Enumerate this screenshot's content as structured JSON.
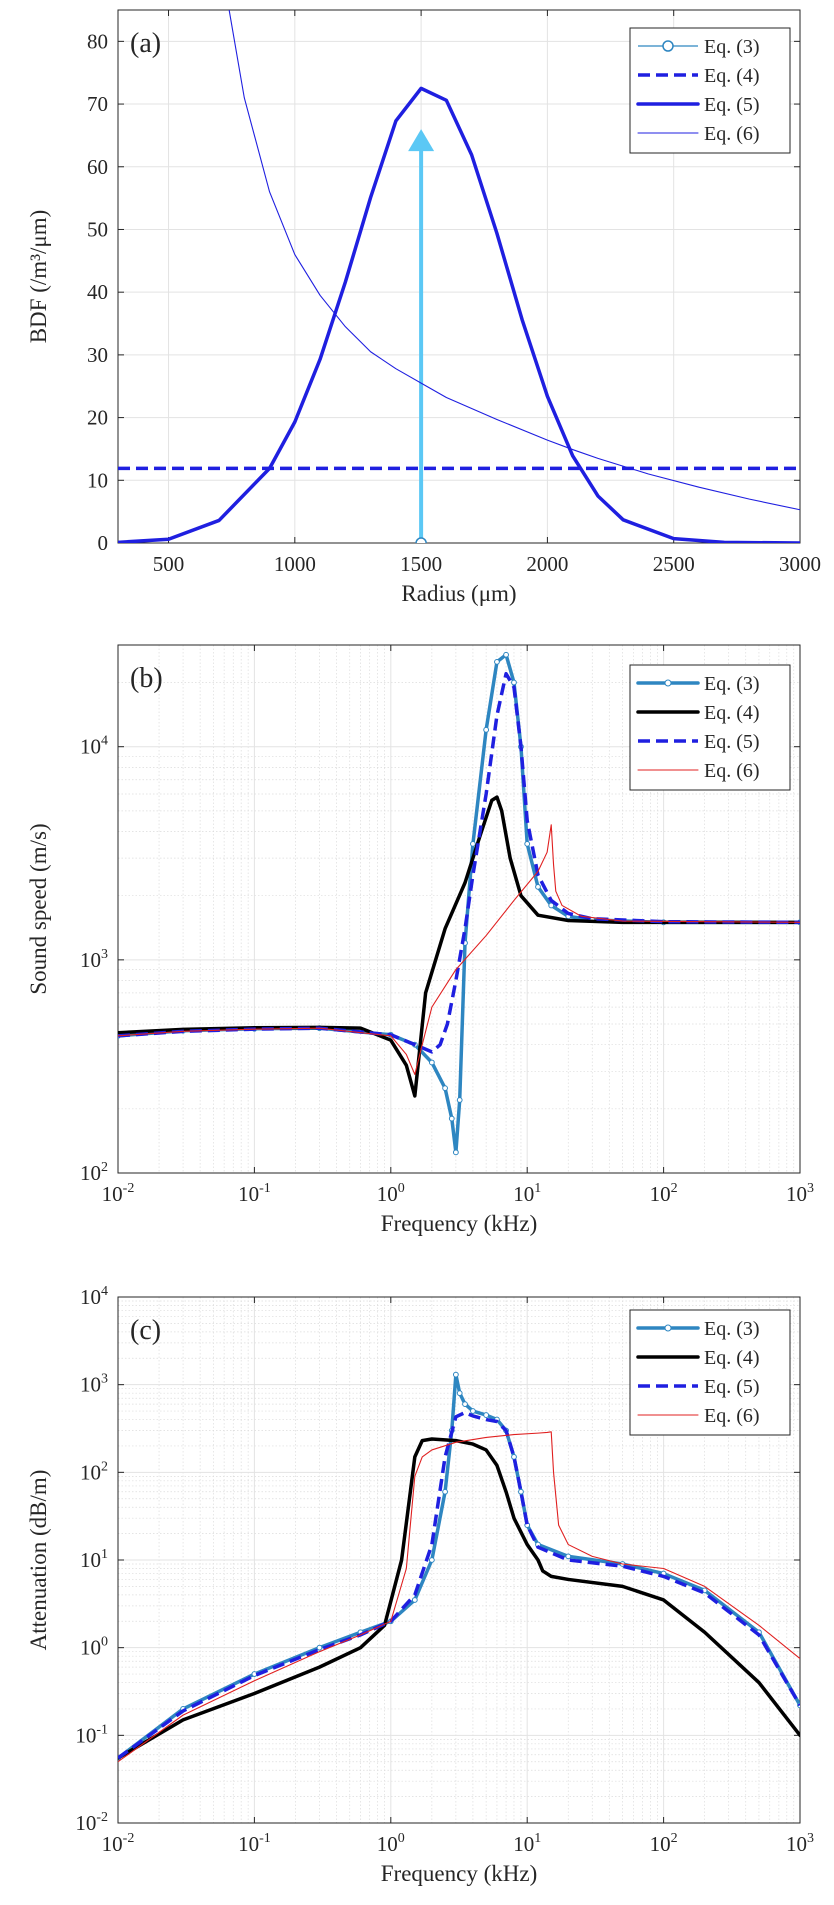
{
  "chart_data": [
    {
      "panel_label": "(a)",
      "type": "line",
      "xlabel": "Radius (μm)",
      "ylabel": "BDF (/m³/μm)",
      "xlim": [
        300,
        3000
      ],
      "ylim": [
        0,
        85
      ],
      "xscale": "linear",
      "yscale": "linear",
      "grid": true,
      "legend_position": "top-right",
      "x_ticks": [
        500,
        1000,
        1500,
        2000,
        2500,
        3000
      ],
      "x_tick_labels": [
        "500",
        "1000",
        "1500",
        "2000",
        "2500",
        "3000"
      ],
      "y_ticks": [
        0,
        10,
        20,
        30,
        40,
        50,
        60,
        70,
        80
      ],
      "y_tick_labels": [
        "0",
        "10",
        "20",
        "30",
        "40",
        "50",
        "60",
        "70",
        "80"
      ],
      "series": [
        {
          "name": "Eq. (3)",
          "color": "#5bc8f5",
          "style": "arrow",
          "x": [
            1500,
            1500
          ],
          "y": [
            0,
            66
          ]
        },
        {
          "name": "Eq. (4)",
          "color": "#1f1fe0",
          "style": "dashed",
          "x": [
            300,
            3000
          ],
          "y": [
            11.9,
            11.9
          ]
        },
        {
          "name": "Eq. (5)",
          "color": "#1f1fe0",
          "style": "solid-thick",
          "x": [
            300,
            500,
            700,
            900,
            1000,
            1100,
            1200,
            1300,
            1400,
            1500,
            1600,
            1700,
            1800,
            1900,
            2000,
            2100,
            2200,
            2300,
            2500,
            2700,
            3000
          ],
          "y": [
            0.1,
            0.6,
            3.6,
            11.9,
            19.3,
            29.3,
            41.6,
            55.1,
            67.3,
            72.5,
            70.6,
            61.9,
            49.4,
            35.6,
            23.4,
            13.9,
            7.5,
            3.7,
            0.7,
            0.1,
            0.0
          ]
        },
        {
          "name": "Eq. (6)",
          "color": "#1f1fe0",
          "style": "solid-thin",
          "x": [
            740,
            800,
            900,
            1000,
            1100,
            1200,
            1300,
            1400,
            1500,
            1600,
            1800,
            2000,
            2100,
            2200,
            2400,
            2600,
            2800,
            3000
          ],
          "y": [
            85,
            71,
            56,
            46,
            39.5,
            34.5,
            30.5,
            27.8,
            25.5,
            23.2,
            19.7,
            16.4,
            14.9,
            13.5,
            11.0,
            8.9,
            7.0,
            5.3
          ]
        }
      ]
    },
    {
      "panel_label": "(b)",
      "type": "line",
      "xlabel": "Frequency (kHz)",
      "ylabel": "Sound speed (m/s)",
      "xlim": [
        0.01,
        1000
      ],
      "ylim": [
        100,
        30000
      ],
      "xscale": "log",
      "yscale": "log",
      "grid": true,
      "legend_position": "top-right",
      "x_ticks": [
        0.01,
        0.1,
        1,
        10,
        100,
        1000
      ],
      "x_tick_labels": [
        [
          "10",
          "-2"
        ],
        [
          "10",
          "-1"
        ],
        [
          "10",
          "0"
        ],
        [
          "10",
          "1"
        ],
        [
          "10",
          "2"
        ],
        [
          "10",
          "3"
        ]
      ],
      "y_ticks": [
        100,
        1000,
        10000
      ],
      "y_tick_labels": [
        [
          "10",
          "2"
        ],
        [
          "10",
          "3"
        ],
        [
          "10",
          "4"
        ]
      ],
      "series": [
        {
          "name": "Eq. (3)",
          "color": "#2e86c1",
          "style": "solid-thick-markers",
          "x": [
            0.01,
            0.03,
            0.1,
            0.3,
            1,
            1.5,
            2,
            2.5,
            2.8,
            3,
            3.2,
            3.5,
            4,
            5,
            6,
            7,
            8,
            9,
            10,
            12,
            15,
            20,
            30,
            100,
            1000
          ],
          "y": [
            440,
            465,
            475,
            478,
            445,
            400,
            330,
            250,
            180,
            125,
            220,
            1200,
            3500,
            12000,
            25000,
            27000,
            20000,
            10000,
            3500,
            2200,
            1800,
            1600,
            1540,
            1500,
            1500
          ]
        },
        {
          "name": "Eq. (4)",
          "color": "#000000",
          "style": "solid-thick",
          "x": [
            0.01,
            0.03,
            0.1,
            0.3,
            0.6,
            1,
            1.3,
            1.5,
            1.6,
            1.8,
            2.5,
            3.5,
            4.5,
            5.5,
            6,
            6.5,
            7.5,
            9,
            12,
            20,
            50,
            1000
          ],
          "y": [
            455,
            472,
            480,
            482,
            478,
            420,
            320,
            230,
            340,
            700,
            1400,
            2300,
            3800,
            5600,
            5800,
            5000,
            3000,
            2000,
            1620,
            1530,
            1500,
            1500
          ]
        },
        {
          "name": "Eq. (5)",
          "color": "#1f1fe0",
          "style": "dashed",
          "x": [
            0.01,
            0.03,
            0.1,
            0.3,
            1,
            1.5,
            2,
            2.3,
            2.6,
            3,
            3.5,
            4,
            5,
            6,
            7,
            8,
            9,
            10,
            12,
            15,
            20,
            30,
            100,
            1000
          ],
          "y": [
            440,
            462,
            473,
            478,
            445,
            400,
            370,
            400,
            500,
            800,
            1400,
            2500,
            6000,
            14000,
            22000,
            19000,
            10000,
            4500,
            2500,
            1900,
            1650,
            1560,
            1510,
            1500
          ]
        },
        {
          "name": "Eq. (6)",
          "color": "#e02020",
          "style": "solid-thin",
          "x": [
            0.01,
            0.03,
            0.1,
            0.3,
            1,
            1.3,
            1.5,
            1.7,
            2,
            3,
            5,
            8,
            12,
            14,
            15,
            15.6,
            16.2,
            18,
            25,
            50,
            1000
          ],
          "y": [
            440,
            462,
            473,
            478,
            440,
            360,
            290,
            400,
            600,
            900,
            1300,
            1900,
            2600,
            3200,
            4300,
            2800,
            2100,
            1800,
            1600,
            1520,
            1500
          ]
        }
      ]
    },
    {
      "panel_label": "(c)",
      "type": "line",
      "xlabel": "Frequency (kHz)",
      "ylabel": "Attenuation (dB/m)",
      "xlim": [
        0.01,
        1000
      ],
      "ylim": [
        0.01,
        10000
      ],
      "xscale": "log",
      "yscale": "log",
      "grid": true,
      "legend_position": "top-right",
      "x_ticks": [
        0.01,
        0.1,
        1,
        10,
        100,
        1000
      ],
      "x_tick_labels": [
        [
          "10",
          "-2"
        ],
        [
          "10",
          "-1"
        ],
        [
          "10",
          "0"
        ],
        [
          "10",
          "1"
        ],
        [
          "10",
          "2"
        ],
        [
          "10",
          "3"
        ]
      ],
      "y_ticks": [
        0.01,
        0.1,
        1,
        10,
        100,
        1000,
        10000
      ],
      "y_tick_labels": [
        [
          "10",
          "-2"
        ],
        [
          "10",
          "-1"
        ],
        [
          "10",
          "0"
        ],
        [
          "10",
          "1"
        ],
        [
          "10",
          "2"
        ],
        [
          "10",
          "3"
        ],
        [
          "10",
          "4"
        ]
      ],
      "series": [
        {
          "name": "Eq. (3)",
          "color": "#2e86c1",
          "style": "solid-thick-markers",
          "x": [
            0.01,
            0.03,
            0.1,
            0.3,
            0.6,
            1,
            1.5,
            2,
            2.5,
            2.8,
            3,
            3.2,
            3.5,
            4,
            5,
            6,
            7,
            8,
            9,
            10,
            12,
            20,
            50,
            100,
            200,
            500,
            1000
          ],
          "y": [
            0.055,
            0.2,
            0.5,
            1.0,
            1.5,
            2.0,
            3.5,
            10,
            60,
            300,
            1300,
            800,
            600,
            500,
            450,
            400,
            300,
            150,
            60,
            25,
            15,
            11,
            9,
            7,
            4.5,
            1.5,
            0.22
          ]
        },
        {
          "name": "Eq. (4)",
          "color": "#000000",
          "style": "solid-thick",
          "x": [
            0.01,
            0.03,
            0.1,
            0.3,
            0.6,
            0.9,
            1.2,
            1.5,
            1.7,
            2,
            3,
            4,
            5,
            6,
            7,
            8,
            10,
            12,
            13,
            15,
            20,
            50,
            100,
            200,
            500,
            1000
          ],
          "y": [
            0.055,
            0.15,
            0.3,
            0.6,
            1.0,
            1.8,
            10,
            150,
            230,
            240,
            230,
            210,
            180,
            120,
            60,
            30,
            15,
            10,
            7.5,
            6.5,
            6,
            5,
            3.5,
            1.5,
            0.4,
            0.1
          ]
        },
        {
          "name": "Eq. (5)",
          "color": "#1f1fe0",
          "style": "dashed",
          "x": [
            0.01,
            0.03,
            0.1,
            0.3,
            0.6,
            1,
            1.5,
            2,
            2.5,
            3,
            3.5,
            4,
            5,
            6,
            7,
            8,
            9,
            10,
            12,
            20,
            50,
            100,
            200,
            500,
            1000
          ],
          "y": [
            0.055,
            0.19,
            0.48,
            0.95,
            1.4,
            2.0,
            4,
            15,
            150,
            430,
            480,
            440,
            400,
            380,
            300,
            150,
            60,
            25,
            14,
            10,
            8.5,
            6.5,
            4.2,
            1.4,
            0.22
          ]
        },
        {
          "name": "Eq. (6)",
          "color": "#e02020",
          "style": "solid-thin",
          "x": [
            0.01,
            0.03,
            0.1,
            0.3,
            0.6,
            1,
            1.3,
            1.5,
            1.7,
            2,
            3,
            5,
            8,
            12,
            14,
            15,
            15.6,
            17,
            20,
            30,
            50,
            100,
            200,
            500,
            1000
          ],
          "y": [
            0.05,
            0.17,
            0.42,
            0.9,
            1.4,
            2.0,
            8,
            90,
            150,
            180,
            220,
            250,
            270,
            280,
            285,
            290,
            100,
            25,
            15,
            11,
            9,
            8,
            5,
            1.8,
            0.75
          ]
        }
      ]
    }
  ]
}
